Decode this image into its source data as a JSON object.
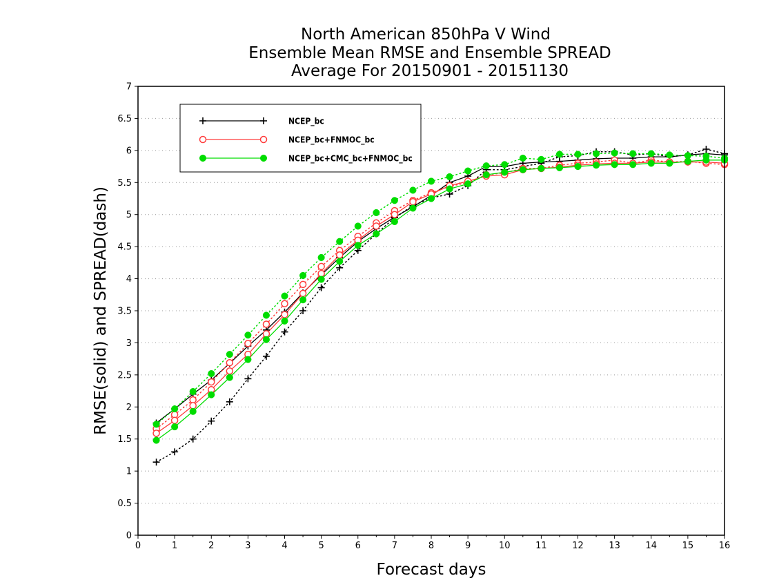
{
  "chart_data": {
    "type": "line",
    "title": [
      "North American 850hPa V Wind",
      "Ensemble Mean RMSE and Ensemble SPREAD",
      "Average For 20150901 - 20151130"
    ],
    "xlabel": "Forecast days",
    "ylabel": "RMSE(solid) and SPREAD(dash)",
    "xlim": [
      0,
      16
    ],
    "ylim": [
      0,
      7
    ],
    "xticks": [
      "0",
      "1",
      "2",
      "3",
      "4",
      "5",
      "6",
      "7",
      "8",
      "9",
      "10",
      "11",
      "12",
      "13",
      "14",
      "15",
      "16"
    ],
    "yticks": [
      "0",
      "0.5",
      "1",
      "1.5",
      "2",
      "2.5",
      "3",
      "3.5",
      "4",
      "4.5",
      "5",
      "5.5",
      "6",
      "6.5",
      "7"
    ],
    "grid": true,
    "legend_position": "top-left",
    "x": [
      0.5,
      1,
      1.5,
      2,
      2.5,
      3,
      3.5,
      4,
      4.5,
      5,
      5.5,
      6,
      6.5,
      7,
      7.5,
      8,
      8.5,
      9,
      9.5,
      10,
      10.5,
      11,
      11.5,
      12,
      12.5,
      13,
      13.5,
      14,
      14.5,
      15,
      15.5,
      16
    ],
    "series": [
      {
        "name": "NCEP_bc",
        "color": "#000000",
        "marker": "plus",
        "rmse": [
          1.75,
          1.97,
          2.2,
          2.42,
          2.68,
          2.95,
          3.2,
          3.48,
          3.78,
          4.06,
          4.33,
          4.58,
          4.78,
          4.96,
          5.12,
          5.3,
          5.5,
          5.6,
          5.75,
          5.75,
          5.8,
          5.82,
          5.83,
          5.85,
          5.87,
          5.88,
          5.88,
          5.9,
          5.9,
          5.93,
          5.95,
          5.93
        ],
        "spread": [
          1.14,
          1.3,
          1.5,
          1.78,
          2.08,
          2.44,
          2.79,
          3.17,
          3.5,
          3.86,
          4.17,
          4.44,
          4.7,
          4.95,
          5.14,
          5.26,
          5.32,
          5.45,
          5.7,
          5.7,
          5.75,
          5.8,
          5.9,
          5.92,
          5.98,
          5.98,
          5.93,
          5.95,
          5.9,
          5.93,
          6.02,
          5.95
        ]
      },
      {
        "name": "NCEP_bc+FNMOC_bc",
        "color": "#ff3b3b",
        "marker": "circle-open",
        "rmse": [
          1.59,
          1.79,
          2.02,
          2.27,
          2.56,
          2.82,
          3.14,
          3.44,
          3.77,
          4.08,
          4.37,
          4.6,
          4.82,
          5.0,
          5.2,
          5.32,
          5.45,
          5.52,
          5.6,
          5.62,
          5.7,
          5.72,
          5.74,
          5.77,
          5.79,
          5.8,
          5.8,
          5.82,
          5.82,
          5.82,
          5.82,
          5.8
        ],
        "spread": [
          1.66,
          1.88,
          2.11,
          2.39,
          2.69,
          2.99,
          3.29,
          3.61,
          3.91,
          4.19,
          4.44,
          4.66,
          4.87,
          5.06,
          5.22,
          5.34,
          5.44,
          5.5,
          5.62,
          5.65,
          5.72,
          5.72,
          5.77,
          5.8,
          5.82,
          5.85,
          5.8,
          5.85,
          5.82,
          5.83,
          5.8,
          5.78
        ]
      },
      {
        "name": "NCEP_bc+CMC_bc+FNMOC_bc",
        "color": "#00dd00",
        "marker": "circle-filled",
        "rmse": [
          1.48,
          1.69,
          1.93,
          2.19,
          2.46,
          2.74,
          3.05,
          3.34,
          3.67,
          3.99,
          4.27,
          4.52,
          4.7,
          4.89,
          5.1,
          5.25,
          5.4,
          5.48,
          5.62,
          5.66,
          5.7,
          5.72,
          5.73,
          5.75,
          5.77,
          5.78,
          5.78,
          5.8,
          5.8,
          5.83,
          5.85,
          5.85
        ],
        "spread": [
          1.73,
          1.97,
          2.24,
          2.52,
          2.82,
          3.12,
          3.43,
          3.73,
          4.05,
          4.33,
          4.58,
          4.82,
          5.03,
          5.22,
          5.38,
          5.52,
          5.59,
          5.68,
          5.76,
          5.78,
          5.88,
          5.86,
          5.94,
          5.94,
          5.95,
          5.96,
          5.95,
          5.95,
          5.93,
          5.92,
          5.91,
          5.88
        ]
      }
    ]
  }
}
